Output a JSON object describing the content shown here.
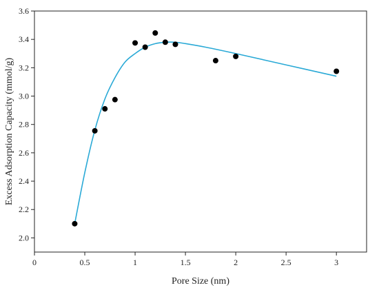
{
  "chart_data": {
    "type": "scatter",
    "title": "",
    "xlabel": "Pore Size (nm)",
    "ylabel": "Excess Adsorption Capacity (mmol/g)",
    "xlim": [
      0,
      3.3
    ],
    "ylim": [
      1.9,
      3.6
    ],
    "xticks": [
      0,
      0.5,
      1,
      1.5,
      2,
      2.5,
      3
    ],
    "xtick_labels": [
      "0",
      "0.5",
      "1",
      "1.5",
      "2",
      "2.5",
      "3"
    ],
    "yticks": [
      2.0,
      2.2,
      2.4,
      2.6,
      2.8,
      3.0,
      3.2,
      3.4,
      3.6
    ],
    "ytick_labels": [
      "2.0",
      "2.2",
      "2.4",
      "2.6",
      "2.8",
      "3.0",
      "3.2",
      "3.4",
      "3.6"
    ],
    "grid": false,
    "legend": "none",
    "series": [
      {
        "type": "scatter",
        "color": "#000000",
        "x": [
          0.4,
          0.6,
          0.7,
          0.8,
          1.0,
          1.1,
          1.2,
          1.3,
          1.4,
          1.8,
          2.0,
          3.0
        ],
        "y": [
          2.1,
          2.755,
          2.91,
          2.975,
          3.375,
          3.345,
          3.445,
          3.38,
          3.365,
          3.25,
          3.28,
          3.175
        ]
      },
      {
        "type": "line",
        "color": "#29a9d6",
        "x": [
          0.4,
          0.5,
          0.6,
          0.7,
          0.8,
          0.9,
          1.0,
          1.1,
          1.2,
          1.3,
          1.4,
          1.5,
          1.7,
          2.0,
          2.5,
          3.0
        ],
        "y": [
          2.1,
          2.46,
          2.76,
          2.98,
          3.13,
          3.24,
          3.3,
          3.345,
          3.37,
          3.38,
          3.38,
          3.37,
          3.345,
          3.3,
          3.22,
          3.14
        ]
      }
    ]
  }
}
